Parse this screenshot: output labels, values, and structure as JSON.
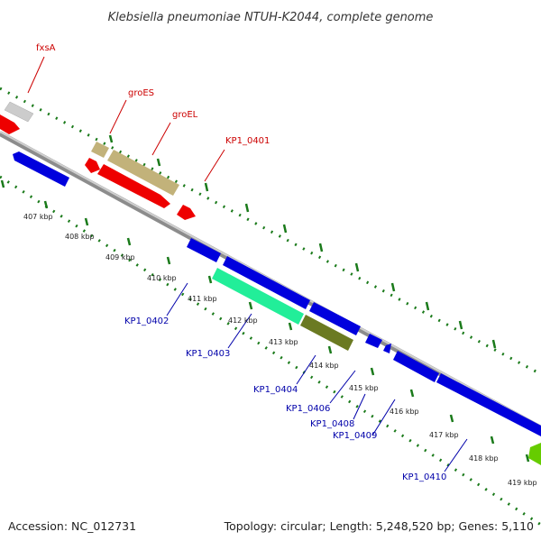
{
  "title": "Klebsiella pneumoniae NTUH-K2044, complete genome",
  "footer": {
    "accession": "Accession: NC_012731",
    "topology": "Topology: circular; Length: 5,248,520 bp; Genes: 5,110"
  },
  "colors": {
    "forward_label": "#cc0000",
    "reverse_label": "#0000aa",
    "ticks": "#1a7a1a",
    "backbone": "#8c8c8c",
    "gene_blue": "#0000dd",
    "gene_red": "#ee0000",
    "gene_olive": "#c2b27a",
    "gene_gray": "#cccccc",
    "gene_cyan": "#22ee99",
    "gene_darkolive": "#6b7a22",
    "gene_green": "#66cc00"
  },
  "scale_labels": [
    "407 kbp",
    "408 kbp",
    "409 kbp",
    "410 kbp",
    "411 kbp",
    "412 kbp",
    "413 kbp",
    "414 kbp",
    "415 kbp",
    "416 kbp",
    "417 kbp",
    "418 kbp",
    "419 kbp"
  ],
  "forward_genes": [
    "fxsA",
    "groES",
    "groEL",
    "KP1_0401"
  ],
  "reverse_genes": [
    "KP1_0402",
    "KP1_0403",
    "KP1_0404",
    "KP1_0406",
    "KP1_0408",
    "KP1_0409",
    "KP1_0410"
  ]
}
